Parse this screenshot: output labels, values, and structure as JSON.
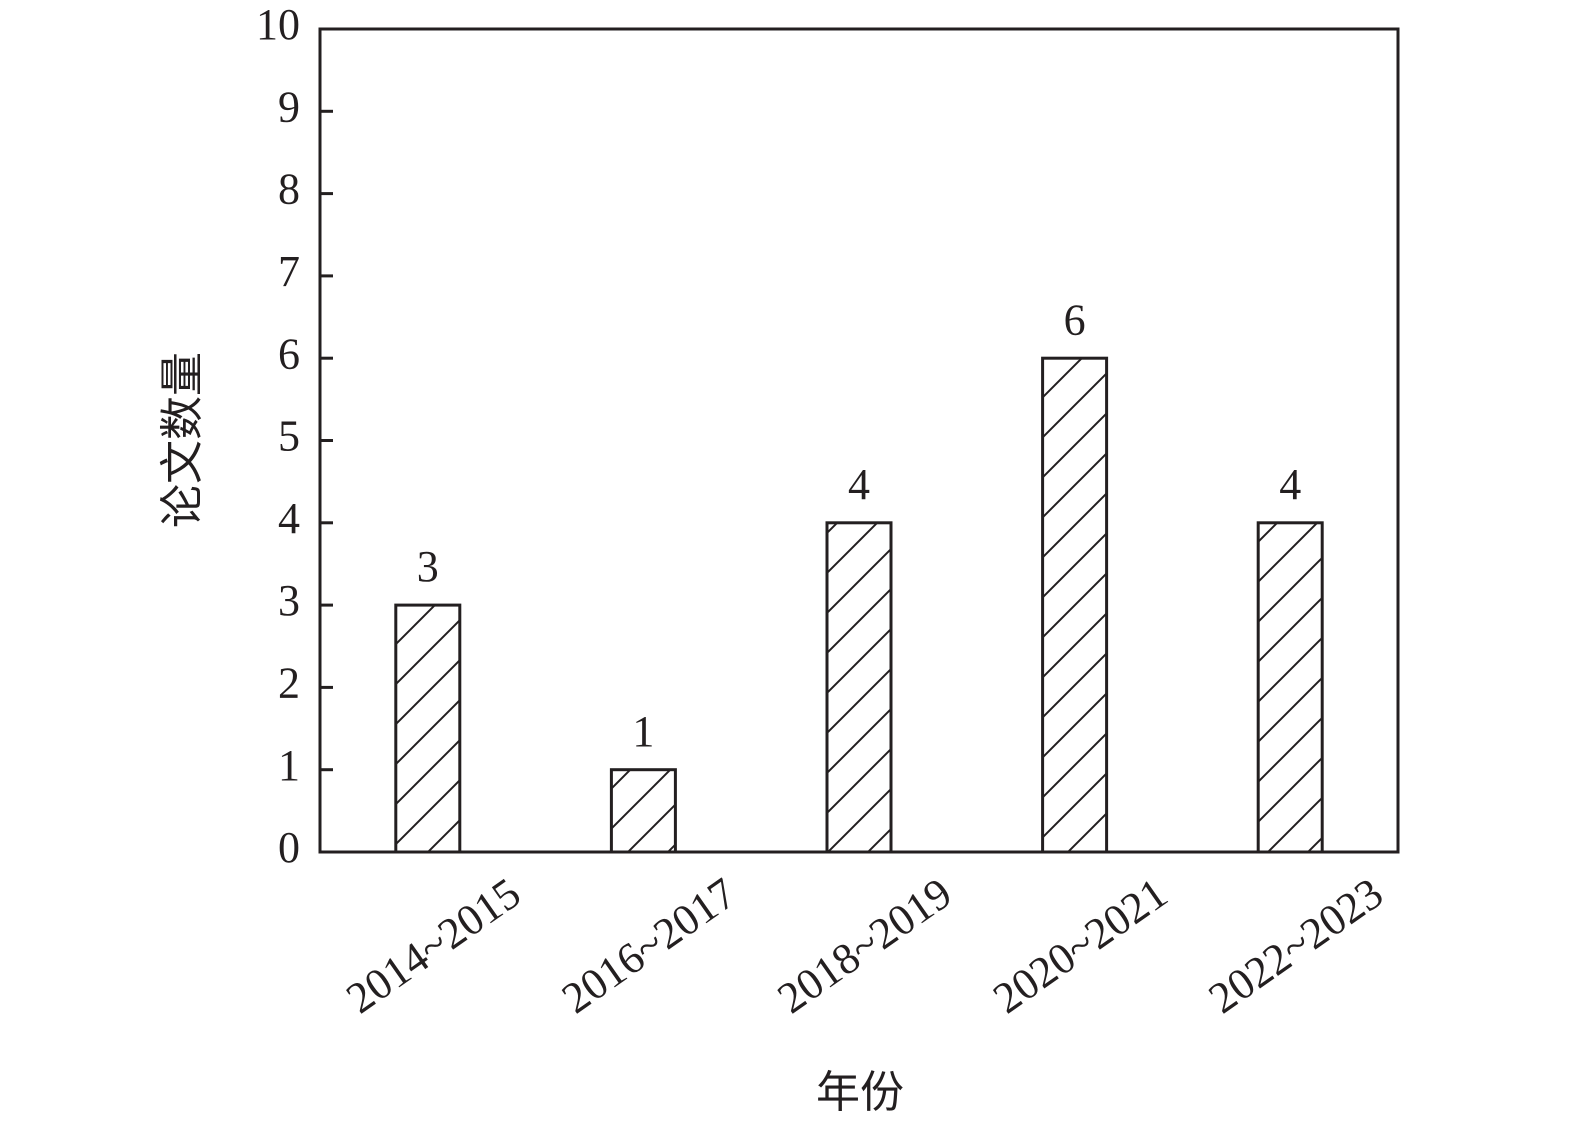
{
  "chart_data": {
    "type": "bar",
    "xlabel": "年份",
    "ylabel": "论文数量",
    "categories": [
      "2014~2015",
      "2016~2017",
      "2018~2019",
      "2020~2021",
      "2022~2023"
    ],
    "values": [
      3,
      1,
      4,
      6,
      4
    ],
    "color": "#231f20",
    "ylim": [
      0,
      10
    ],
    "yticks": [
      0,
      1,
      2,
      3,
      4,
      5,
      6,
      7,
      8,
      9,
      10
    ],
    "grid": false
  }
}
